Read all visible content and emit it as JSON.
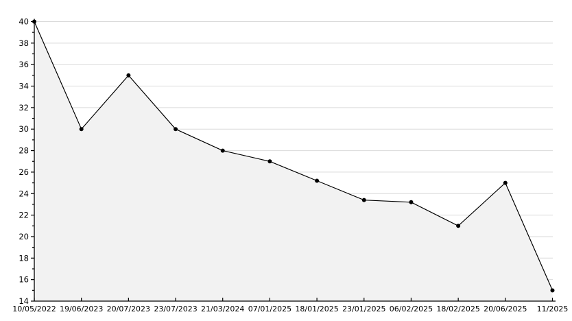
{
  "chart_data": {
    "type": "line",
    "title": "",
    "xlabel": "",
    "ylabel": "",
    "categories": [
      "10/05/2022",
      "19/06/2023",
      "20/07/2023",
      "23/07/2023",
      "21/03/2024",
      "07/01/2025",
      "18/01/2025",
      "23/01/2025",
      "06/02/2025",
      "18/02/2025",
      "20/06/2025",
      "11/2025"
    ],
    "values": [
      40,
      30,
      35,
      30,
      28,
      27,
      25.2,
      23.4,
      23.2,
      21,
      25,
      15
    ],
    "ylim": [
      14,
      40
    ],
    "ytick_step": 2,
    "ytick_minor_step": 1,
    "ytick_labels": [
      "14",
      "16",
      "18",
      "20",
      "22",
      "24",
      "26",
      "28",
      "30",
      "32",
      "34",
      "36",
      "38",
      "40"
    ],
    "grid": "horizontal",
    "legend": "none",
    "area_fill": true,
    "marker": "dot",
    "colors": {
      "line": "#000000",
      "marker": "#000000",
      "area_fill": "#f2f2f2",
      "gridline": "#d9d9d9",
      "axis": "#000000",
      "text": "#000000",
      "background": "#ffffff"
    }
  }
}
